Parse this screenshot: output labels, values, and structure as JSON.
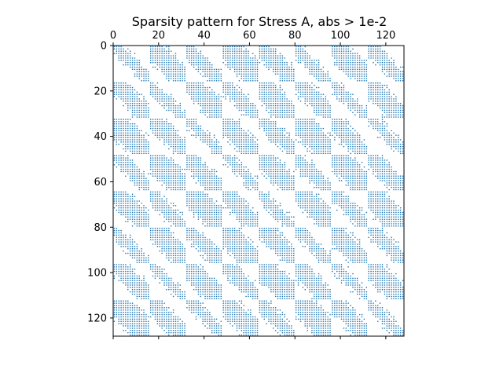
{
  "chart_data": {
    "type": "heatmap",
    "kind": "sparsity-pattern",
    "title": "Sparsity pattern for Stress A, abs > 1e-2",
    "xlabel": "",
    "ylabel": "",
    "matrix_size": 128,
    "xlim": [
      0,
      128
    ],
    "ylim": [
      128,
      0
    ],
    "x_ticks_position": "top",
    "x_ticks": [
      "0",
      "20",
      "40",
      "60",
      "80",
      "100",
      "120"
    ],
    "y_ticks": [
      "0",
      "20",
      "40",
      "60",
      "80",
      "100",
      "120"
    ],
    "grid": false,
    "legend": "none",
    "block_size": 16,
    "block_grid": [
      8,
      8
    ],
    "pattern": "every 16x16 block is a banded (near-diagonal) sub-pattern; nonzeros also appear in diagonal blocks",
    "marker_color": "#1f77b4"
  }
}
